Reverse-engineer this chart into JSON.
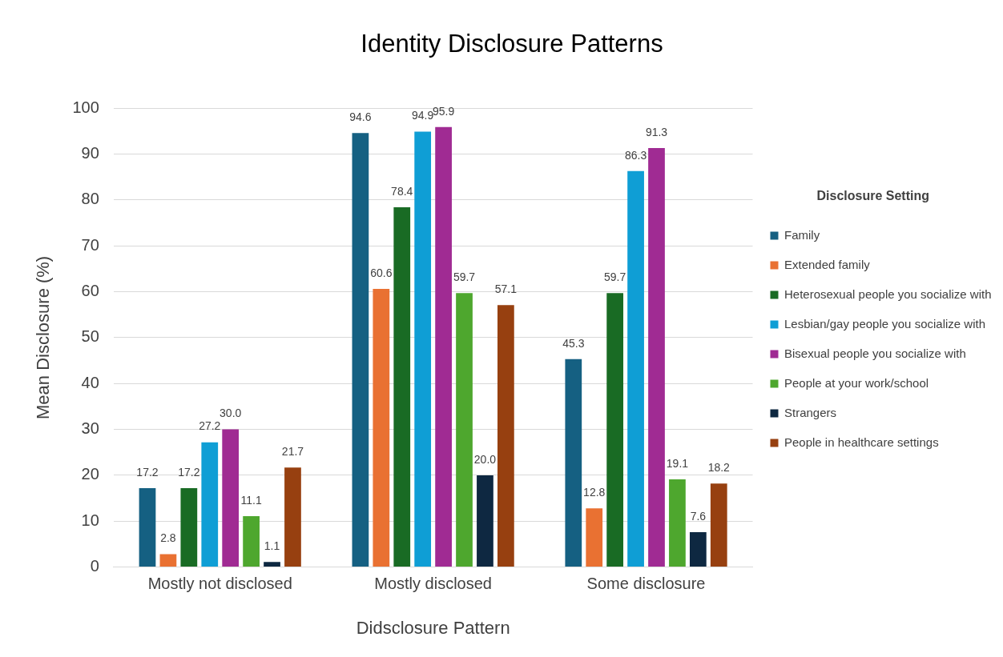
{
  "chart_data": {
    "type": "bar",
    "title": "Identity Disclosure Patterns",
    "xlabel": "Didsclosure Pattern",
    "ylabel": "Mean Disclosure (%)",
    "legend_title": "Disclosure Setting",
    "categories": [
      "Mostly not disclosed",
      "Mostly disclosed",
      "Some disclosure"
    ],
    "series": [
      {
        "name": "Family",
        "color": "#156082",
        "values": [
          17.2,
          94.6,
          45.3
        ],
        "value_labels": [
          "17.2",
          "94.6",
          "45.3"
        ]
      },
      {
        "name": "Extended family",
        "color": "#e97132",
        "values": [
          2.8,
          60.6,
          12.8
        ],
        "value_labels": [
          "2.8",
          "60.6",
          "12.8"
        ]
      },
      {
        "name": "Heterosexual people you socialize with",
        "color": "#196b24",
        "values": [
          17.2,
          78.4,
          59.7
        ],
        "value_labels": [
          "17.2",
          "78.4",
          "59.7"
        ]
      },
      {
        "name": "Lesbian/gay people you socialize with",
        "color": "#0f9ed5",
        "values": [
          27.2,
          94.9,
          86.3
        ],
        "value_labels": [
          "27.2",
          "94.9",
          "86.3"
        ]
      },
      {
        "name": "Bisexual people you socialize with",
        "color": "#a02b93",
        "values": [
          30.0,
          95.9,
          91.3
        ],
        "value_labels": [
          "30.0",
          "95.9",
          "91.3"
        ]
      },
      {
        "name": "People at your work/school",
        "color": "#4ea72e",
        "values": [
          11.1,
          59.7,
          19.1
        ],
        "value_labels": [
          "11.1",
          "59.7",
          "19.1"
        ]
      },
      {
        "name": "Strangers",
        "color": "#0e2841",
        "values": [
          1.1,
          20.0,
          7.6
        ],
        "value_labels": [
          "1.1",
          "20.0",
          "7.6"
        ]
      },
      {
        "name": "People in healthcare settings",
        "color": "#974010",
        "values": [
          21.7,
          57.1,
          18.2
        ],
        "value_labels": [
          "21.7",
          "57.1",
          "18.2"
        ]
      }
    ],
    "ylim": [
      0,
      100
    ],
    "yticks": [
      0,
      10,
      20,
      30,
      40,
      50,
      60,
      70,
      80,
      90,
      100
    ],
    "grid": "y",
    "legend": "right"
  }
}
